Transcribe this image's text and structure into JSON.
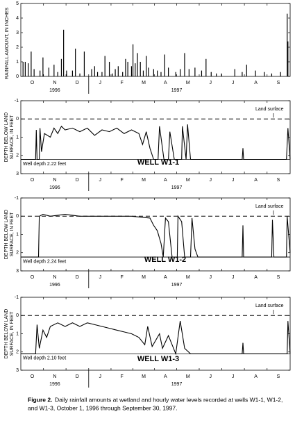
{
  "chart_data": [
    {
      "type": "bar",
      "y_label": "RAINFALL AMOUNT, IN INCHES",
      "color": "#000000",
      "xlim": [
        0,
        365
      ],
      "xticks": [
        {
          "value": 15.5,
          "label": "O"
        },
        {
          "value": 46,
          "label": "N"
        },
        {
          "value": 76.5,
          "label": "D"
        },
        {
          "value": 107.5,
          "label": "J"
        },
        {
          "value": 137,
          "label": "F"
        },
        {
          "value": 166.5,
          "label": "M"
        },
        {
          "value": 196,
          "label": "A"
        },
        {
          "value": 226.5,
          "label": "M"
        },
        {
          "value": 257,
          "label": "J"
        },
        {
          "value": 287.5,
          "label": "J"
        },
        {
          "value": 318.5,
          "label": "A"
        },
        {
          "value": 349,
          "label": "S"
        }
      ],
      "years": [
        "1996",
        "1997"
      ],
      "ylim": [
        0,
        5
      ],
      "yticks": [
        0,
        1,
        2,
        3,
        4,
        5
      ],
      "x": [
        3,
        6,
        10,
        14,
        18,
        26,
        30,
        38,
        45,
        50,
        55,
        58,
        62,
        70,
        74,
        80,
        86,
        96,
        100,
        104,
        110,
        114,
        120,
        124,
        128,
        132,
        138,
        142,
        145,
        150,
        152,
        155,
        158,
        162,
        166,
        170,
        173,
        180,
        185,
        190,
        195,
        200,
        210,
        216,
        222,
        228,
        236,
        245,
        251,
        258,
        265,
        272,
        290,
        300,
        306,
        318,
        330,
        340,
        352,
        361,
        362
      ],
      "values": [
        1.0,
        1.0,
        0.9,
        1.7,
        0.5,
        0.4,
        1.3,
        0.6,
        0.8,
        0.3,
        1.2,
        3.2,
        0.4,
        0.4,
        1.9,
        0.2,
        1.7,
        0.5,
        0.7,
        0.3,
        0.3,
        1.4,
        1.0,
        0.2,
        0.5,
        0.7,
        0.3,
        1.2,
        1.0,
        0.7,
        2.2,
        0.9,
        1.6,
        1.0,
        0.4,
        1.4,
        0.6,
        0.5,
        0.4,
        0.3,
        1.5,
        0.6,
        0.3,
        0.5,
        1.6,
        0.5,
        0.6,
        0.4,
        1.2,
        0.3,
        0.2,
        0.2,
        0.5,
        0.3,
        0.8,
        0.4,
        0.3,
        0.2,
        0.3,
        4.3,
        2.4
      ]
    },
    {
      "type": "line",
      "name": "WELL W1-1",
      "y_label": [
        "DEPTH BELOW LAND",
        "SURFACE, IN FEET"
      ],
      "color": "#000000",
      "annotations": [
        "Land surface",
        "Well depth 2.22 feet"
      ],
      "land_surface": 0,
      "well_depth": 2.22,
      "xlim": [
        0,
        365
      ],
      "xticks": [
        {
          "value": 15.5,
          "label": "O"
        },
        {
          "value": 46,
          "label": "N"
        },
        {
          "value": 76.5,
          "label": "D"
        },
        {
          "value": 107.5,
          "label": "J"
        },
        {
          "value": 137,
          "label": "F"
        },
        {
          "value": 166.5,
          "label": "M"
        },
        {
          "value": 196,
          "label": "A"
        },
        {
          "value": 226.5,
          "label": "M"
        },
        {
          "value": 257,
          "label": "J"
        },
        {
          "value": 287.5,
          "label": "J"
        },
        {
          "value": 318.5,
          "label": "A"
        },
        {
          "value": 349,
          "label": "S"
        }
      ],
      "years": [
        "1996",
        "1997"
      ],
      "ylim": [
        -1,
        3
      ],
      "yticks": [
        -1,
        0,
        1,
        2,
        3
      ],
      "x": [
        0,
        20,
        21,
        22,
        25,
        26,
        28,
        32,
        40,
        45,
        50,
        55,
        60,
        70,
        80,
        90,
        100,
        110,
        120,
        130,
        140,
        150,
        160,
        165,
        170,
        175,
        180,
        186,
        188,
        194,
        200,
        202,
        208,
        218,
        219,
        224,
        226,
        230,
        300,
        301,
        302,
        360,
        362,
        365
      ],
      "values": [
        2.22,
        2.22,
        0.6,
        2.22,
        2.22,
        0.5,
        1.8,
        0.8,
        1.0,
        0.5,
        0.8,
        0.4,
        0.6,
        0.5,
        0.7,
        0.5,
        0.9,
        0.6,
        0.7,
        0.5,
        0.8,
        0.6,
        0.8,
        1.4,
        0.7,
        1.6,
        2.22,
        2.22,
        0.4,
        2.22,
        2.22,
        0.7,
        2.22,
        2.22,
        0.4,
        2.22,
        0.3,
        2.22,
        2.22,
        1.6,
        2.22,
        2.22,
        0.5,
        2.22
      ]
    },
    {
      "type": "line",
      "name": "WELL W1-2",
      "y_label": [
        "DEPTH BELOW LAND",
        "SURFACE, IN FEET"
      ],
      "color": "#000000",
      "annotations": [
        "Land surface",
        "Well depth 2.24 feet"
      ],
      "land_surface": 0,
      "well_depth": 2.24,
      "xlim": [
        0,
        365
      ],
      "xticks": [
        {
          "value": 15.5,
          "label": "O"
        },
        {
          "value": 46,
          "label": "N"
        },
        {
          "value": 76.5,
          "label": "D"
        },
        {
          "value": 107.5,
          "label": "J"
        },
        {
          "value": 137,
          "label": "F"
        },
        {
          "value": 166.5,
          "label": "M"
        },
        {
          "value": 196,
          "label": "A"
        },
        {
          "value": 226.5,
          "label": "M"
        },
        {
          "value": 257,
          "label": "J"
        },
        {
          "value": 287.5,
          "label": "J"
        },
        {
          "value": 318.5,
          "label": "A"
        },
        {
          "value": 349,
          "label": "S"
        }
      ],
      "years": [
        "1996",
        "1997"
      ],
      "ylim": [
        -1,
        3
      ],
      "yticks": [
        -1,
        0,
        1,
        2,
        3
      ],
      "x": [
        0,
        24,
        25,
        30,
        40,
        60,
        80,
        100,
        120,
        150,
        175,
        180,
        185,
        190,
        193,
        196,
        200,
        205,
        212,
        213,
        218,
        222,
        230,
        232,
        236,
        240,
        300,
        301,
        302,
        340,
        341,
        343,
        360,
        361,
        365
      ],
      "values": [
        2.24,
        2.24,
        0.0,
        -0.1,
        0.0,
        -0.1,
        0.0,
        0.0,
        0.0,
        0.0,
        0.1,
        0.5,
        0.8,
        1.5,
        2.24,
        0.1,
        0.3,
        2.24,
        2.24,
        0.0,
        0.3,
        2.24,
        2.24,
        0.1,
        1.8,
        2.24,
        2.24,
        0.5,
        2.24,
        2.24,
        0.2,
        2.24,
        2.24,
        0.0,
        2.0
      ]
    },
    {
      "type": "line",
      "name": "WELL W1-3",
      "y_label": [
        "DEPTH BELOW LAND",
        "SURFACE, IN FEET"
      ],
      "color": "#000000",
      "annotations": [
        "Land surface",
        "Well depth 2.10 feet"
      ],
      "land_surface": 0,
      "well_depth": 2.1,
      "xlim": [
        0,
        365
      ],
      "xticks": [
        {
          "value": 15.5,
          "label": "O"
        },
        {
          "value": 46,
          "label": "N"
        },
        {
          "value": 76.5,
          "label": "D"
        },
        {
          "value": 107.5,
          "label": "J"
        },
        {
          "value": 137,
          "label": "F"
        },
        {
          "value": 166.5,
          "label": "M"
        },
        {
          "value": 196,
          "label": "A"
        },
        {
          "value": 226.5,
          "label": "M"
        },
        {
          "value": 257,
          "label": "J"
        },
        {
          "value": 287.5,
          "label": "J"
        },
        {
          "value": 318.5,
          "label": "A"
        },
        {
          "value": 349,
          "label": "S"
        }
      ],
      "years": [
        "1996",
        "1997"
      ],
      "ylim": [
        -1,
        3
      ],
      "yticks": [
        -1,
        0,
        1,
        2,
        3
      ],
      "x": [
        0,
        20,
        22,
        25,
        30,
        35,
        40,
        50,
        60,
        70,
        80,
        90,
        100,
        110,
        120,
        130,
        140,
        150,
        160,
        168,
        172,
        178,
        188,
        192,
        200,
        210,
        216,
        222,
        230,
        300,
        301,
        302,
        361,
        362,
        365
      ],
      "values": [
        2.1,
        2.1,
        0.5,
        1.8,
        0.8,
        1.2,
        0.6,
        0.4,
        0.6,
        0.4,
        0.6,
        0.4,
        0.5,
        0.6,
        0.7,
        0.8,
        0.9,
        1.0,
        1.2,
        1.6,
        0.6,
        1.7,
        1.0,
        1.8,
        1.1,
        2.1,
        0.3,
        1.8,
        2.1,
        2.1,
        1.5,
        2.1,
        2.1,
        0.3,
        2.1
      ]
    }
  ],
  "caption": {
    "label": "Figure 2.",
    "lines": [
      "Daily rainfall amounts at wetland and hourly water levels recorded at wells W1-1, W1-2,",
      "and W1-3, October 1, 1996 through September 30, 1997."
    ]
  }
}
